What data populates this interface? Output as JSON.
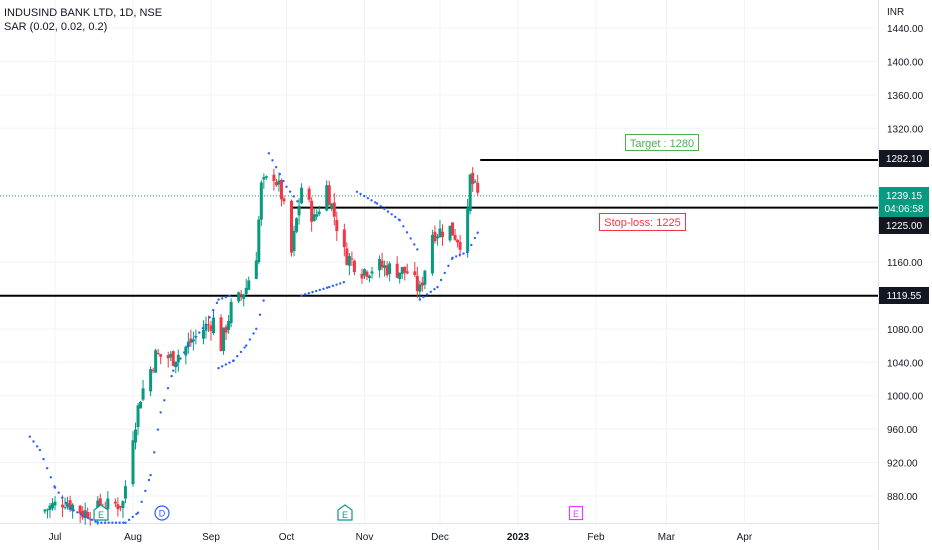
{
  "header": {
    "symbol_line": "INDUSIND BANK LTD, 1D, NSE",
    "indicator_line": "SAR (0.02, 0.02, 0.2)"
  },
  "price_axis": {
    "currency": "INR",
    "ticks": [
      "1440.00",
      "1400.00",
      "1360.00",
      "1320.00",
      "1160.00",
      "1080.00",
      "1040.00",
      "1000.00",
      "960.00",
      "920.00",
      "880.00"
    ]
  },
  "time_axis": {
    "labels": [
      "Jul",
      "Aug",
      "Sep",
      "Oct",
      "Nov",
      "Dec",
      "2023",
      "Feb",
      "Mar",
      "Apr"
    ]
  },
  "price_tags": {
    "resistance": "1282.10",
    "last_price": "1239.15",
    "countdown": "04:06:58",
    "stop_level": "1225.00",
    "support": "1119.55"
  },
  "annotations": {
    "target": "Target : 1280",
    "stoploss": "Stop-loss: 1225"
  },
  "events": [
    "E",
    "D",
    "E",
    "E"
  ],
  "colors": {
    "up": "#089981",
    "down": "#f23645",
    "sar": "#2962ff",
    "target": "#4caf50",
    "stop": "#f23645",
    "dividend": "#2962ff",
    "future_earnings": "#e040fb",
    "last_price_bg": "#089981"
  },
  "chart_data": {
    "type": "candlestick",
    "title": "INDUSIND BANK LTD, 1D, NSE",
    "ylim": [
      847,
      1459
    ],
    "levels": {
      "resistance": 1282.1,
      "stop_loss": 1225,
      "support": 1119.55,
      "last_price": 1239.15
    },
    "anchors": [
      [
        "2022-06-25",
        861
      ],
      [
        "2022-07-05",
        875
      ],
      [
        "2022-07-12",
        860
      ],
      [
        "2022-07-20",
        866
      ],
      [
        "2022-07-28",
        872
      ],
      [
        "2022-08-01",
        955
      ],
      [
        "2022-08-04",
        1000
      ],
      [
        "2022-08-10",
        1048
      ],
      [
        "2022-08-17",
        1045
      ],
      [
        "2022-08-22",
        1058
      ],
      [
        "2022-08-29",
        1080
      ],
      [
        "2022-09-02",
        1090
      ],
      [
        "2022-09-05",
        1060
      ],
      [
        "2022-09-09",
        1105
      ],
      [
        "2022-09-12",
        1115
      ],
      [
        "2022-09-15",
        1130
      ],
      [
        "2022-09-19",
        1170
      ],
      [
        "2022-09-21",
        1250
      ],
      [
        "2022-09-26",
        1265
      ],
      [
        "2022-09-29",
        1240
      ],
      [
        "2022-10-03",
        1170
      ],
      [
        "2022-10-07",
        1250
      ],
      [
        "2022-10-12",
        1210
      ],
      [
        "2022-10-17",
        1250
      ],
      [
        "2022-10-24",
        1170
      ],
      [
        "2022-10-31",
        1150
      ],
      [
        "2022-11-07",
        1155
      ],
      [
        "2022-11-14",
        1150
      ],
      [
        "2022-11-18",
        1148
      ],
      [
        "2022-11-23",
        1125
      ],
      [
        "2022-11-28",
        1195
      ],
      [
        "2022-12-05",
        1200
      ],
      [
        "2022-12-09",
        1185
      ],
      [
        "2022-12-12",
        1215
      ],
      [
        "2022-12-13",
        1260
      ],
      [
        "2022-12-16",
        1239.15
      ]
    ],
    "sar": [
      [
        "2022-06-21",
        951
      ],
      [
        "2022-06-25",
        935
      ],
      [
        "2022-07-01",
        890
      ],
      [
        "2022-07-07",
        865
      ],
      [
        "2022-07-18",
        848
      ],
      [
        "2022-07-29",
        848
      ],
      [
        "2022-08-03",
        860
      ],
      [
        "2022-08-08",
        905
      ],
      [
        "2022-08-12",
        980
      ],
      [
        "2022-08-17",
        1030
      ],
      [
        "2022-08-23",
        1060
      ],
      [
        "2022-08-30",
        1085
      ],
      [
        "2022-09-04",
        1115
      ],
      [
        "2022-09-09",
        1120
      ],
      [
        "2022-09-04",
        1033
      ],
      [
        "2022-09-10",
        1042
      ],
      [
        "2022-09-15",
        1060
      ],
      [
        "2022-09-19",
        1080
      ],
      [
        "2022-09-22",
        1115
      ],
      [
        "2022-09-24",
        1290
      ],
      [
        "2022-10-01",
        1250
      ],
      [
        "2022-10-06",
        1230
      ],
      [
        "2022-10-07",
        1120
      ],
      [
        "2022-10-18",
        1130
      ],
      [
        "2022-10-24",
        1136
      ],
      [
        "2022-10-29",
        1244
      ],
      [
        "2022-11-06",
        1230
      ],
      [
        "2022-11-15",
        1210
      ],
      [
        "2022-11-22",
        1175
      ],
      [
        "2022-11-23",
        1115
      ],
      [
        "2022-11-30",
        1130
      ],
      [
        "2022-12-06",
        1165
      ],
      [
        "2022-12-12",
        1172
      ],
      [
        "2022-12-16",
        1195
      ]
    ]
  }
}
